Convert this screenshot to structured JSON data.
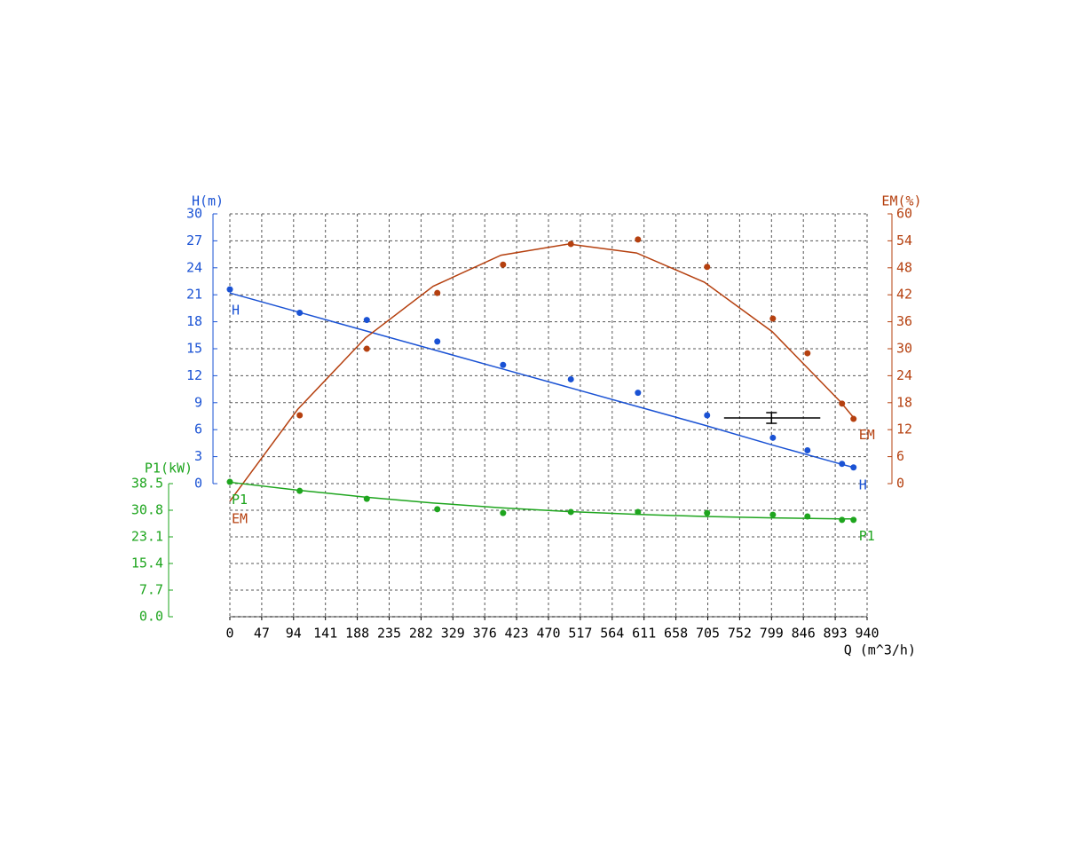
{
  "chart_data": {
    "type": "line",
    "x_label": "Q (m^3/h)",
    "xlim": [
      0,
      940
    ],
    "xticks": [
      0,
      47,
      94,
      141,
      188,
      235,
      282,
      329,
      376,
      423,
      470,
      517,
      564,
      611,
      658,
      705,
      752,
      799,
      846,
      893,
      940
    ],
    "ylabel": "H(m)",
    "ylim": [
      0,
      30
    ],
    "yticks": [
      0,
      3,
      6,
      9,
      12,
      15,
      18,
      21,
      24,
      27,
      30
    ],
    "y2label": "EM(%)",
    "y2lim": [
      0,
      60
    ],
    "y2ticks": [
      0,
      6,
      12,
      18,
      24,
      30,
      36,
      42,
      48,
      54,
      60
    ],
    "y3label": "P1(kW)",
    "y3lim": [
      0,
      38.5
    ],
    "y3ticks": [
      {
        "value": 0,
        "label": "0.0"
      },
      7.7,
      15.4,
      23.1,
      30.8,
      38.5
    ],
    "grid": true,
    "fit_x": [
      0,
      100,
      200,
      300,
      400,
      500,
      600,
      700,
      800,
      900,
      920
    ],
    "series": [
      {
        "name": "H",
        "axis": "y",
        "color": "#1a52d4",
        "x": [
          0,
          103,
          202,
          306,
          403,
          503,
          602,
          704,
          801,
          852,
          903,
          920
        ],
        "values": [
          21.6,
          19.0,
          18.2,
          15.8,
          13.2,
          11.6,
          10.1,
          7.6,
          5.1,
          3.7,
          2.2,
          1.8
        ],
        "fit": [
          21.2,
          19.1,
          17.0,
          14.9,
          12.8,
          10.7,
          8.6,
          6.5,
          4.3,
          2.2,
          1.8
        ]
      },
      {
        "name": "EM",
        "axis": "y2",
        "color": "#b5400f",
        "x": [
          103,
          202,
          306,
          403,
          503,
          602,
          704,
          801,
          852,
          903,
          920
        ],
        "values": [
          15.2,
          30,
          42.4,
          48.7,
          53.3,
          54.3,
          48.2,
          36.7,
          29,
          17.8,
          14.4
        ],
        "fit": [
          -3.9,
          16.5,
          32.4,
          43.9,
          50.8,
          53.3,
          51.3,
          44.8,
          33.8,
          18.3,
          14.7
        ]
      },
      {
        "name": "P1",
        "axis": "y3",
        "color": "#1ea51e",
        "x": [
          0,
          103,
          202,
          306,
          403,
          503,
          602,
          704,
          801,
          852,
          903,
          920
        ],
        "values": [
          39.0,
          36.4,
          34.1,
          31.1,
          30.0,
          30.3,
          30.3,
          30.0,
          29.5,
          29.0,
          28.0,
          28.0
        ],
        "fit": [
          38.9,
          36.6,
          34.6,
          32.9,
          31.5,
          30.4,
          29.6,
          29.0,
          28.6,
          28.3,
          28.3
        ]
      }
    ],
    "operating_point": {
      "x": 799,
      "value": 7.3,
      "x_range": [
        729,
        871
      ]
    }
  }
}
